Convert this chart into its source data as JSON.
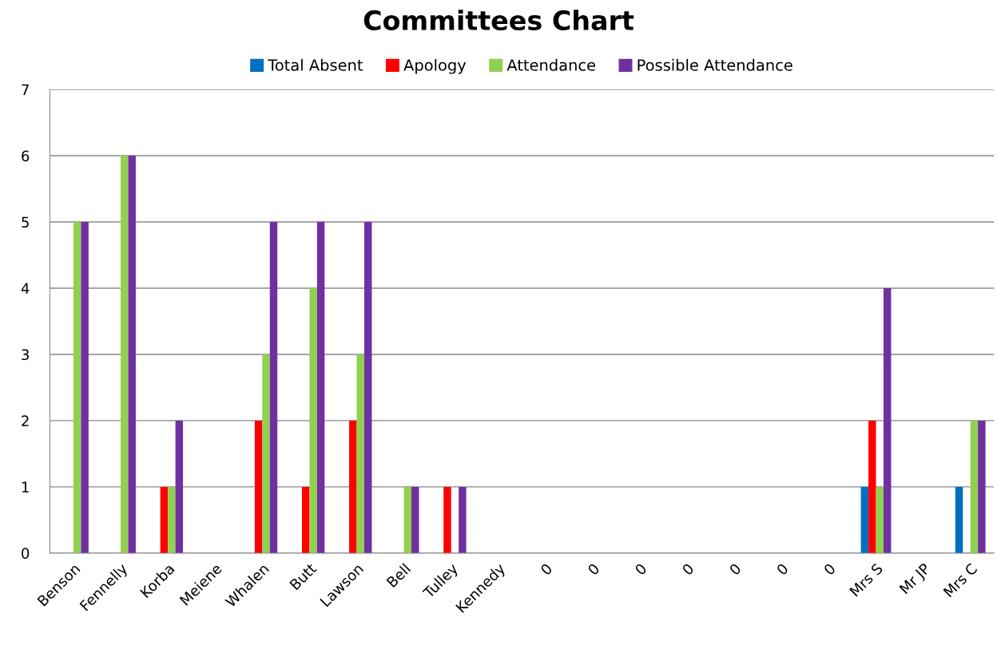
{
  "chart_data": {
    "type": "bar",
    "title": "Committees Chart",
    "categories": [
      "Benson",
      "Fennelly",
      "Korba",
      "Meiene",
      "Whalen",
      "Butt",
      "Lawson",
      "Bell",
      "Tulley",
      "Kennedy",
      "0",
      "0",
      "0",
      "0",
      "0",
      "0",
      "0",
      "Mrs S",
      "Mr JP",
      "Mrs C"
    ],
    "series": [
      {
        "name": "Total Absent",
        "color": "#0070c0",
        "values": [
          0,
          0,
          0,
          0,
          0,
          0,
          0,
          0,
          0,
          0,
          0,
          0,
          0,
          0,
          0,
          0,
          0,
          1,
          0,
          1
        ]
      },
      {
        "name": "Apology",
        "color": "#ff0000",
        "values": [
          0,
          0,
          1,
          0,
          2,
          1,
          2,
          0,
          1,
          0,
          0,
          0,
          0,
          0,
          0,
          0,
          0,
          2,
          0,
          0
        ]
      },
      {
        "name": "Attendance",
        "color": "#92d050",
        "values": [
          5,
          6,
          1,
          0,
          3,
          4,
          3,
          1,
          0,
          0,
          0,
          0,
          0,
          0,
          0,
          0,
          0,
          1,
          0,
          2
        ]
      },
      {
        "name": "Possible Attendance",
        "color": "#7030a0",
        "values": [
          5,
          6,
          2,
          0,
          5,
          5,
          5,
          1,
          1,
          0,
          0,
          0,
          0,
          0,
          0,
          0,
          0,
          4,
          0,
          2
        ]
      }
    ],
    "ylim": [
      0,
      7
    ],
    "yticks": [
      0,
      1,
      2,
      3,
      4,
      5,
      6,
      7
    ],
    "grid": "y",
    "legend": "top"
  }
}
